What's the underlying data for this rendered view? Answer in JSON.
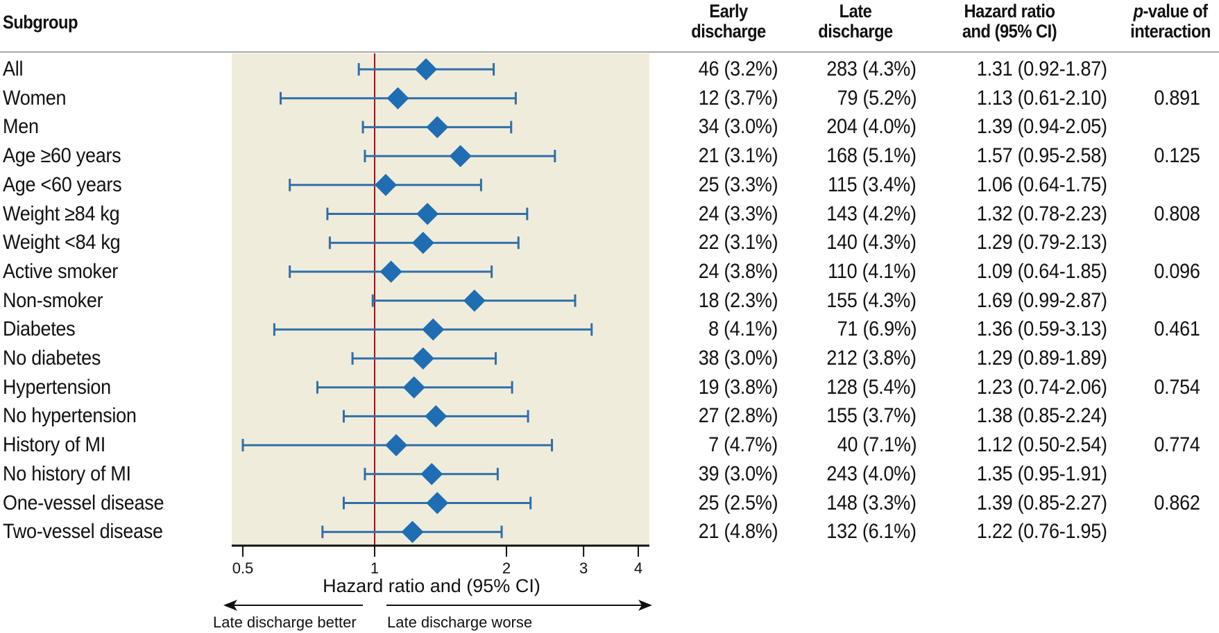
{
  "header": {
    "subgroup": "Subgroup",
    "early": [
      "Early",
      "discharge"
    ],
    "late": [
      "Late",
      "discharge"
    ],
    "hr": [
      "Hazard ratio",
      "and (95% CI)"
    ],
    "p": {
      "italic": "p",
      "rest_line1": "-value of",
      "line2": "interaction"
    }
  },
  "colors": {
    "panel": "#f0ecdc",
    "marker": "#1f6db3",
    "ci_line": "#2f6fa8",
    "reference_line": "#8b1a1a",
    "rule": "#a8a8a8",
    "axis": "#111111"
  },
  "chart_data": {
    "type": "forest",
    "xlabel": "Hazard ratio and (95% CI)",
    "xscale": "log",
    "xlim": [
      0.48,
      4.3
    ],
    "xticks": [
      0.5,
      1,
      2,
      3,
      4
    ],
    "xtick_labels": [
      "0.5",
      "1",
      "2",
      "3",
      "4"
    ],
    "reference_value": 1,
    "direction_left": "Late discharge better",
    "direction_right": "Late discharge worse",
    "rows": [
      {
        "subgroup": "All",
        "early": "46 (3.2%)",
        "late": "283 (4.3%)",
        "hr": 1.31,
        "lo": 0.92,
        "hi": 1.87,
        "hr_text": "1.31 (0.92-1.87)",
        "p": ""
      },
      {
        "subgroup": "Women",
        "early": "12 (3.7%)",
        "late": "79 (5.2%)",
        "hr": 1.13,
        "lo": 0.61,
        "hi": 2.1,
        "hr_text": "1.13 (0.61-2.10)",
        "p": "0.891"
      },
      {
        "subgroup": "Men",
        "early": "34 (3.0%)",
        "late": "204 (4.0%)",
        "hr": 1.39,
        "lo": 0.94,
        "hi": 2.05,
        "hr_text": "1.39 (0.94-2.05)",
        "p": ""
      },
      {
        "subgroup": "Age ≥60 years",
        "early": "21 (3.1%)",
        "late": "168 (5.1%)",
        "hr": 1.57,
        "lo": 0.95,
        "hi": 2.58,
        "hr_text": "1.57 (0.95-2.58)",
        "p": "0.125"
      },
      {
        "subgroup": "Age <60 years",
        "early": "25 (3.3%)",
        "late": "115 (3.4%)",
        "hr": 1.06,
        "lo": 0.64,
        "hi": 1.75,
        "hr_text": "1.06 (0.64-1.75)",
        "p": ""
      },
      {
        "subgroup": "Weight ≥84 kg",
        "early": "24 (3.3%)",
        "late": "143 (4.2%)",
        "hr": 1.32,
        "lo": 0.78,
        "hi": 2.23,
        "hr_text": "1.32 (0.78-2.23)",
        "p": "0.808"
      },
      {
        "subgroup": "Weight <84 kg",
        "early": "22 (3.1%)",
        "late": "140 (4.3%)",
        "hr": 1.29,
        "lo": 0.79,
        "hi": 2.13,
        "hr_text": "1.29 (0.79-2.13)",
        "p": ""
      },
      {
        "subgroup": "Active smoker",
        "early": "24 (3.8%)",
        "late": "110 (4.1%)",
        "hr": 1.09,
        "lo": 0.64,
        "hi": 1.85,
        "hr_text": "1.09 (0.64-1.85)",
        "p": "0.096"
      },
      {
        "subgroup": "Non-smoker",
        "early": "18 (2.3%)",
        "late": "155 (4.3%)",
        "hr": 1.69,
        "lo": 0.99,
        "hi": 2.87,
        "hr_text": "1.69 (0.99-2.87)",
        "p": ""
      },
      {
        "subgroup": "Diabetes",
        "early": "8 (4.1%)",
        "late": "71 (6.9%)",
        "hr": 1.36,
        "lo": 0.59,
        "hi": 3.13,
        "hr_text": "1.36 (0.59-3.13)",
        "p": "0.461"
      },
      {
        "subgroup": "No diabetes",
        "early": "38 (3.0%)",
        "late": "212 (3.8%)",
        "hr": 1.29,
        "lo": 0.89,
        "hi": 1.89,
        "hr_text": "1.29 (0.89-1.89)",
        "p": ""
      },
      {
        "subgroup": "Hypertension",
        "early": "19 (3.8%)",
        "late": "128 (5.4%)",
        "hr": 1.23,
        "lo": 0.74,
        "hi": 2.06,
        "hr_text": "1.23 (0.74-2.06)",
        "p": "0.754"
      },
      {
        "subgroup": "No hypertension",
        "early": "27 (2.8%)",
        "late": "155 (3.7%)",
        "hr": 1.38,
        "lo": 0.85,
        "hi": 2.24,
        "hr_text": "1.38 (0.85-2.24)",
        "p": ""
      },
      {
        "subgroup": "History of MI",
        "early": "7 (4.7%)",
        "late": "40 (7.1%)",
        "hr": 1.12,
        "lo": 0.5,
        "hi": 2.54,
        "hr_text": "1.12 (0.50-2.54)",
        "p": "0.774"
      },
      {
        "subgroup": "No history of MI",
        "early": "39 (3.0%)",
        "late": "243 (4.0%)",
        "hr": 1.35,
        "lo": 0.95,
        "hi": 1.91,
        "hr_text": "1.35 (0.95-1.91)",
        "p": ""
      },
      {
        "subgroup": "One-vessel disease",
        "early": "25 (2.5%)",
        "late": "148 (3.3%)",
        "hr": 1.39,
        "lo": 0.85,
        "hi": 2.27,
        "hr_text": "1.39 (0.85-2.27)",
        "p": "0.862"
      },
      {
        "subgroup": "Two-vessel disease",
        "early": "21 (4.8%)",
        "late": "132 (6.1%)",
        "hr": 1.22,
        "lo": 0.76,
        "hi": 1.95,
        "hr_text": "1.22 (0.76-1.95)",
        "p": ""
      }
    ]
  }
}
